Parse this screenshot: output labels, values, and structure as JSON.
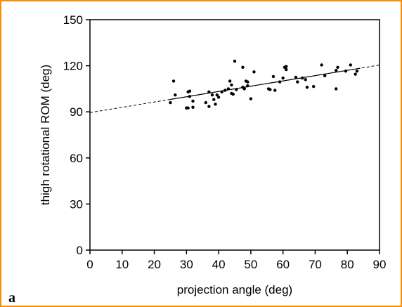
{
  "chart_data": {
    "type": "scatter",
    "panel_label": "a",
    "title": "",
    "xlabel": "projection angle (deg)",
    "ylabel": "thigh rotational ROM (deg)",
    "xlim": [
      0,
      90
    ],
    "ylim": [
      0,
      150
    ],
    "xticks": [
      0,
      10,
      20,
      30,
      40,
      50,
      60,
      70,
      80,
      90
    ],
    "yticks": [
      0,
      30,
      60,
      90,
      120,
      150
    ],
    "grid": false,
    "points": [
      [
        25,
        96
      ],
      [
        26,
        110
      ],
      [
        26.5,
        101
      ],
      [
        30,
        92.5
      ],
      [
        30.5,
        92.5
      ],
      [
        30.5,
        103
      ],
      [
        31,
        100
      ],
      [
        31,
        103.5
      ],
      [
        32,
        93
      ],
      [
        32,
        97
      ],
      [
        36,
        96
      ],
      [
        37,
        93.5
      ],
      [
        37,
        103
      ],
      [
        38,
        101
      ],
      [
        38.5,
        98
      ],
      [
        39,
        95
      ],
      [
        39.5,
        101
      ],
      [
        40,
        99.5
      ],
      [
        41,
        103
      ],
      [
        42,
        104
      ],
      [
        43,
        105
      ],
      [
        43.5,
        110
      ],
      [
        44,
        102
      ],
      [
        44,
        107.5
      ],
      [
        44.5,
        101.5
      ],
      [
        45,
        123
      ],
      [
        45.5,
        104.5
      ],
      [
        47.5,
        119
      ],
      [
        47.5,
        106
      ],
      [
        48,
        105
      ],
      [
        48.5,
        110
      ],
      [
        49,
        109.5
      ],
      [
        49,
        107
      ],
      [
        50,
        98.5
      ],
      [
        51,
        116
      ],
      [
        55.5,
        105
      ],
      [
        56,
        104.5
      ],
      [
        57,
        113
      ],
      [
        57.5,
        104
      ],
      [
        59,
        109.5
      ],
      [
        60,
        112
      ],
      [
        60.5,
        119
      ],
      [
        61,
        117.5
      ],
      [
        61,
        119.5
      ],
      [
        64,
        112.5
      ],
      [
        64.5,
        109.5
      ],
      [
        66,
        112
      ],
      [
        67,
        111
      ],
      [
        67.5,
        106
      ],
      [
        69.5,
        106.5
      ],
      [
        72,
        120.5
      ],
      [
        73,
        113.5
      ],
      [
        76.5,
        105
      ],
      [
        76.5,
        117
      ],
      [
        77,
        119
      ],
      [
        79.5,
        116.5
      ],
      [
        81,
        120.5
      ],
      [
        82.5,
        114.5
      ],
      [
        83,
        116.5
      ]
    ],
    "fit_line": {
      "slope": 0.344,
      "intercept": 89.5,
      "solid_range": [
        25,
        84
      ],
      "dashed_range": [
        0,
        90
      ]
    }
  }
}
